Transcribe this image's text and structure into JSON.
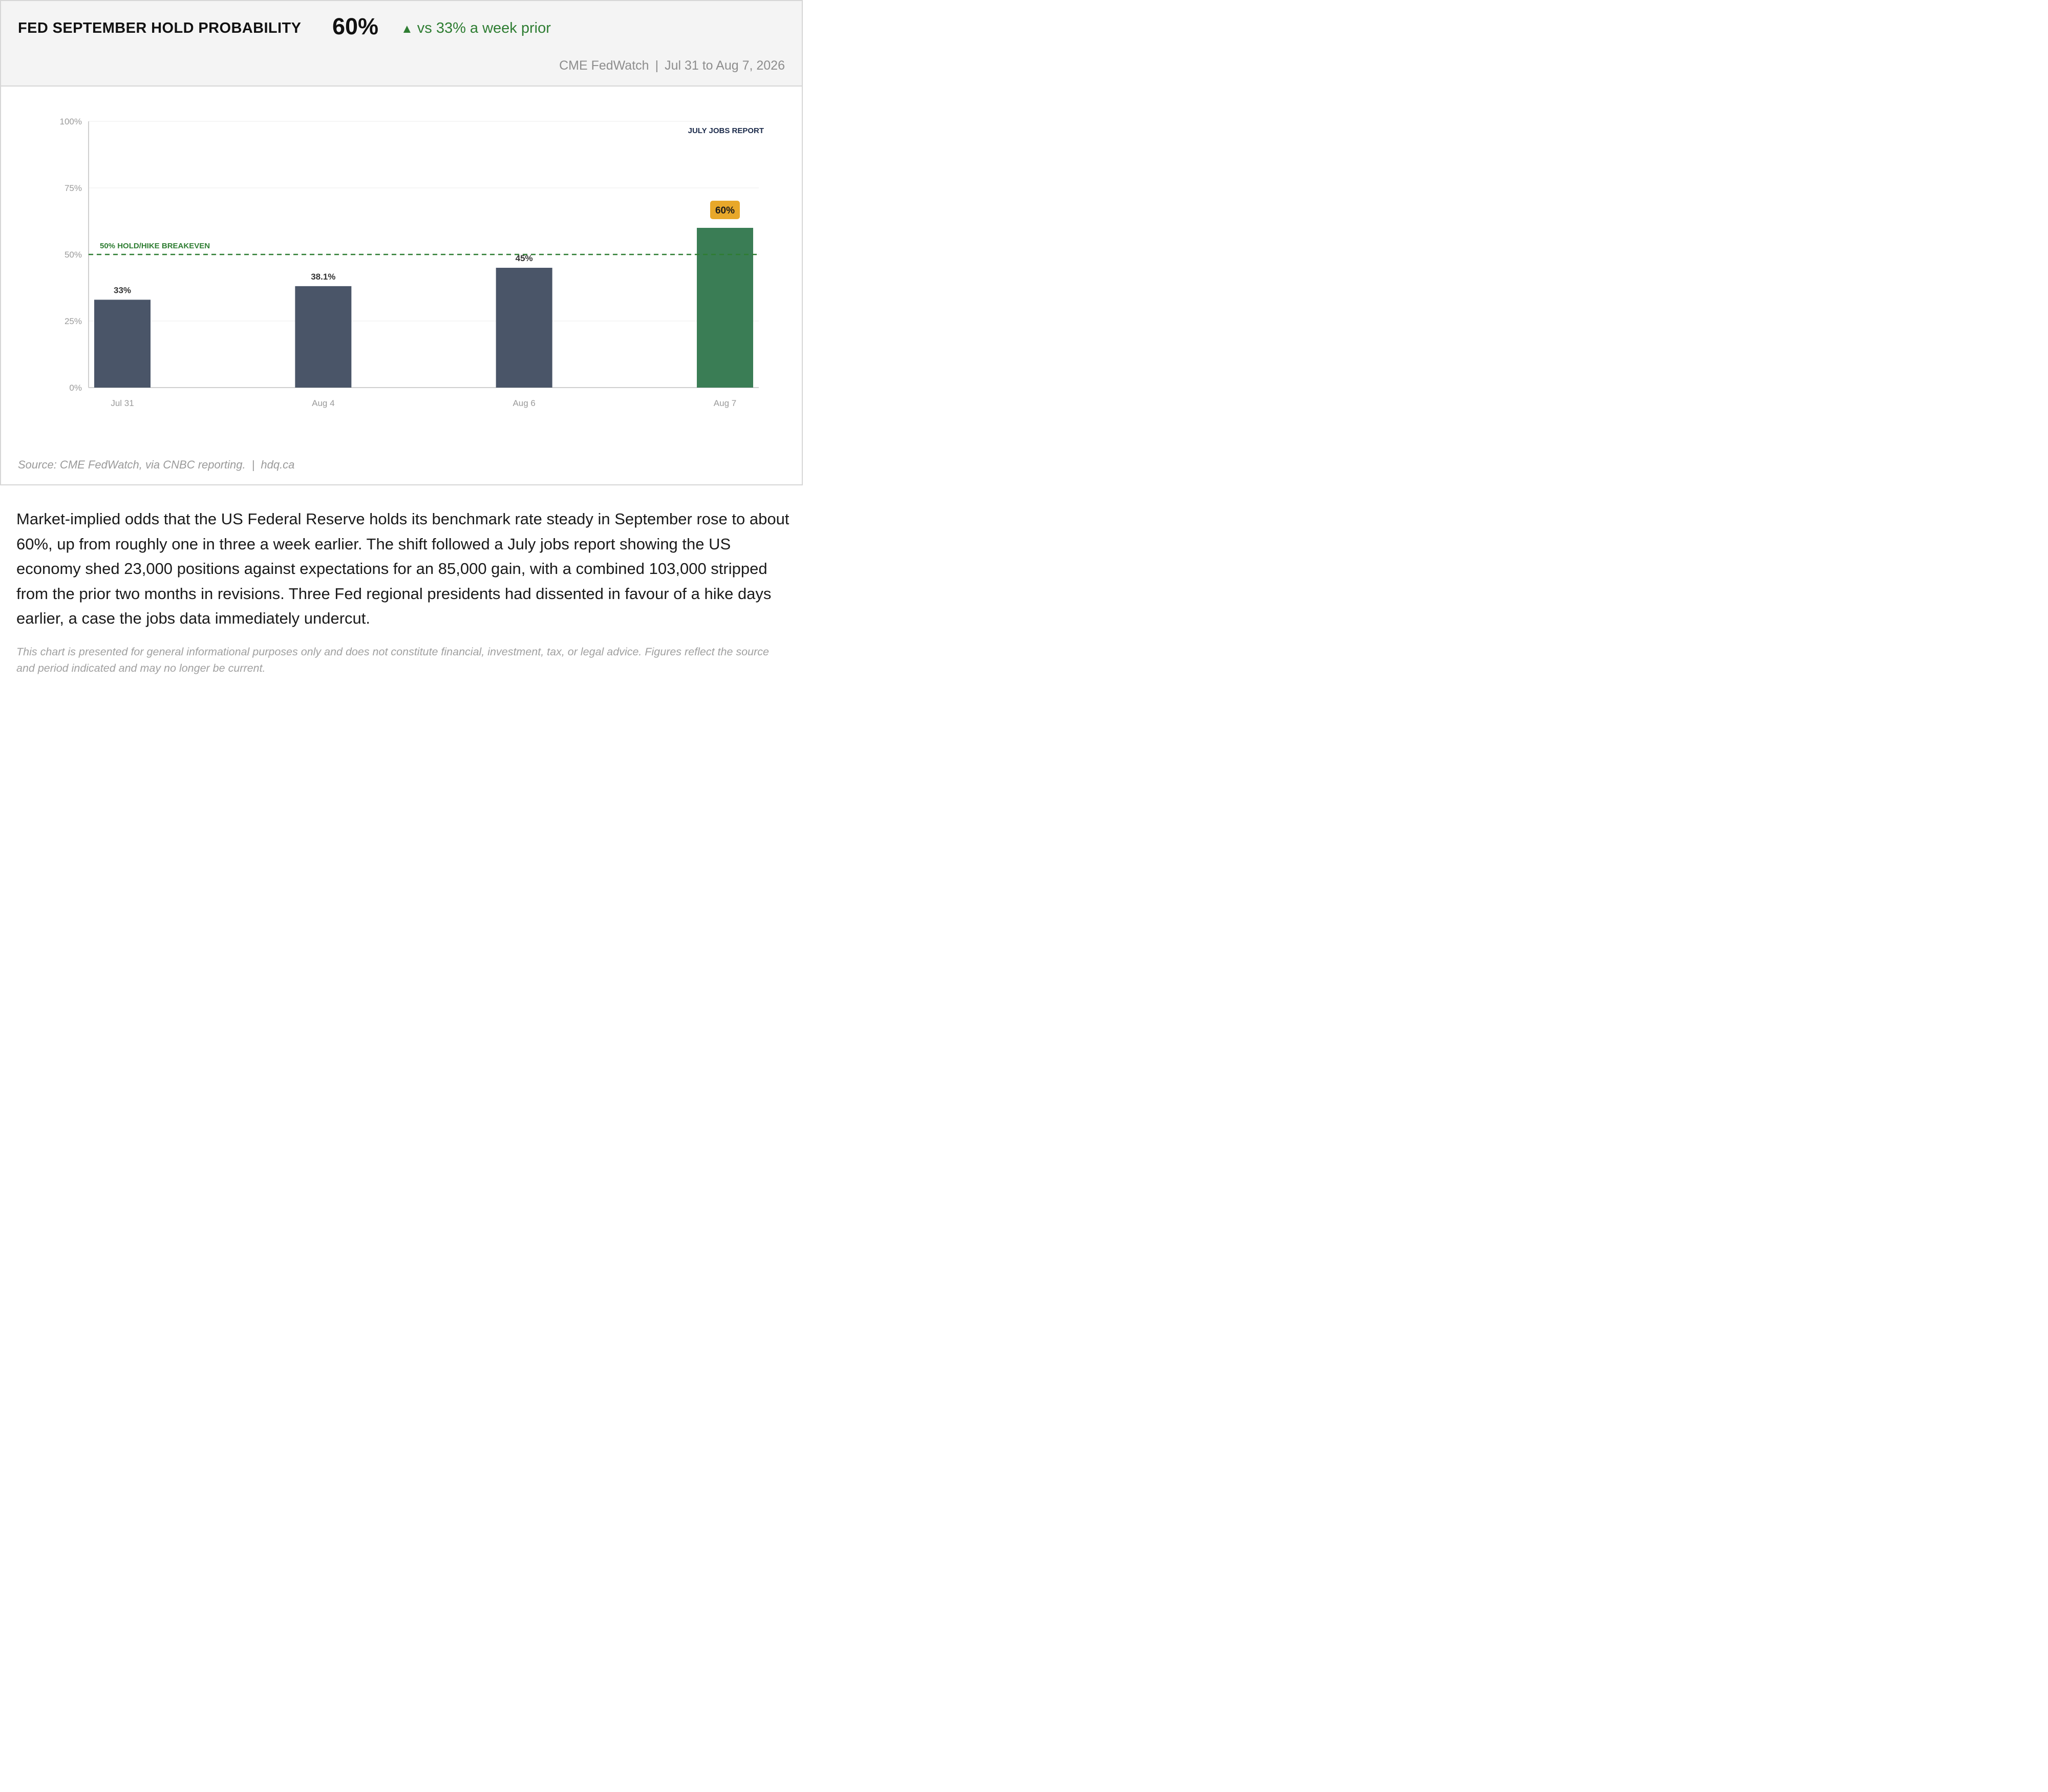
{
  "header": {
    "title": "FED SEPTEMBER HOLD PROBABILITY",
    "headline_value": "60%",
    "delta_arrow": "▲",
    "delta_text": "vs 33% a week prior",
    "source_name": "CME FedWatch",
    "separator": "|",
    "period": "Jul 31 to Aug 7, 2026"
  },
  "colors": {
    "bar_default": "#4a5568",
    "bar_highlight": "#3a7d55",
    "badge": "#e8a82a",
    "reference_line": "#2e7d32",
    "delta": "#2e7d32",
    "annotation": "#1b2a4a"
  },
  "chart_data": {
    "type": "bar",
    "categories": [
      "Jul 31",
      "Aug 4",
      "Aug 6",
      "Aug 7"
    ],
    "values": [
      33,
      38.1,
      45,
      60
    ],
    "value_labels": [
      "33%",
      "38.1%",
      "45%",
      "60%"
    ],
    "highlight_index": 3,
    "ylim": [
      0,
      100
    ],
    "yticks": [
      0,
      25,
      50,
      75,
      100
    ],
    "ytick_labels": [
      "0%",
      "25%",
      "50%",
      "75%",
      "100%"
    ],
    "grid": true,
    "reference_line": {
      "value": 50,
      "label": "50% HOLD/HIKE BREAKEVEN",
      "style": "dashed"
    },
    "annotation": {
      "text": "JULY JOBS REPORT",
      "placement": "top-right"
    }
  },
  "footer": {
    "source": "Source: CME FedWatch, via CNBC reporting.",
    "separator": "|",
    "site": "hdq.ca"
  },
  "body": {
    "paragraph": "Market-implied odds that the US Federal Reserve holds its benchmark rate steady in September rose to about 60%, up from roughly one in three a week earlier. The shift followed a July jobs report showing the US economy shed 23,000 positions against expectations for an 85,000 gain, with a combined 103,000 stripped from the prior two months in revisions. Three Fed regional presidents had dissented in favour of a hike days earlier, a case the jobs data immediately undercut.",
    "disclaimer": "This chart is presented for general informational purposes only and does not constitute financial, investment, tax, or legal advice. Figures reflect the source and period indicated and may no longer be current."
  }
}
